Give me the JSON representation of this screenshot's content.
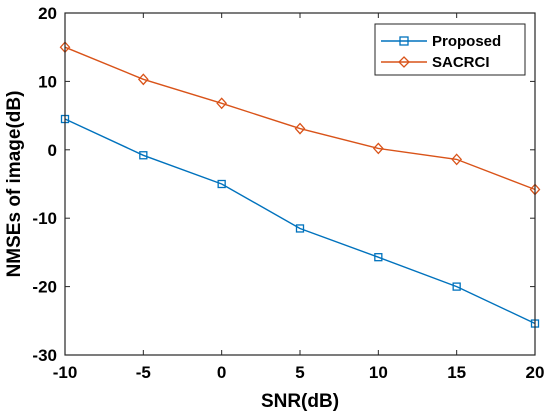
{
  "chart_data": {
    "type": "line",
    "title": "",
    "xlabel": "SNR(dB)",
    "ylabel": "NMSEs of image(dB)",
    "xlim": [
      -10,
      20
    ],
    "ylim": [
      -30,
      20
    ],
    "xticks": [
      -10,
      -5,
      0,
      5,
      10,
      15,
      20
    ],
    "yticks": [
      -30,
      -20,
      -10,
      0,
      10,
      20
    ],
    "x": [
      -10,
      -5,
      0,
      5,
      10,
      15,
      20
    ],
    "grid": false,
    "legend_position": "top-right",
    "series": [
      {
        "name": "Proposed",
        "color": "#0072BD",
        "marker": "square",
        "values": [
          4.5,
          -0.8,
          -5.0,
          -11.5,
          -15.7,
          -20.0,
          -25.4
        ]
      },
      {
        "name": "SACRCI",
        "color": "#D95319",
        "marker": "diamond",
        "values": [
          15.0,
          10.3,
          6.8,
          3.1,
          0.2,
          -1.4,
          -5.8
        ]
      }
    ]
  }
}
